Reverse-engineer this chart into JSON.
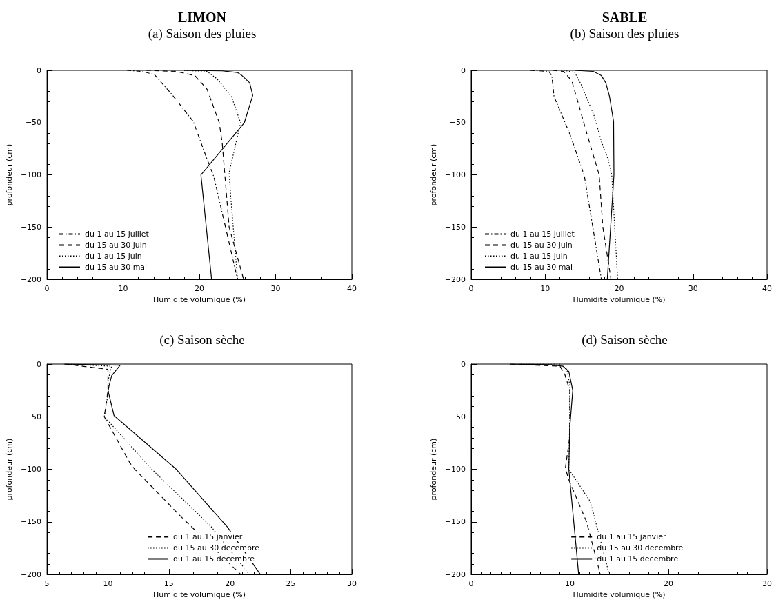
{
  "chart_data": [
    {
      "type": "line",
      "title": "LIMON",
      "subtitle": "(a) Saison des pluies",
      "xlabel": "Humidite volumique (%)",
      "ylabel": "profondeur (cm)",
      "xlim": [
        0,
        40
      ],
      "xticks": [
        0,
        10,
        20,
        30,
        40
      ],
      "ylim": [
        -200,
        0
      ],
      "yticks": [
        -200,
        -150,
        -100,
        -50,
        0
      ],
      "legend": "bottom left",
      "marker": "none",
      "grid": false,
      "series": [
        {
          "name": "du 1 au 15 juillet",
          "color": "#000000",
          "line_style": "dashdot",
          "x": [
            10.5,
            12.5,
            14.1,
            16.5,
            19.2,
            20.8,
            21.9,
            25
          ],
          "values": [
            0,
            -1,
            -4,
            -24,
            -49,
            -81,
            -102,
            -200
          ]
        },
        {
          "name": "du 15 au 30 juin",
          "color": "#000000",
          "line_style": "dashed",
          "x": [
            13,
            17,
            19.4,
            21,
            22.6,
            23,
            23.9,
            25.8
          ],
          "values": [
            0,
            -1,
            -5,
            -18,
            -50,
            -70,
            -150,
            -200
          ]
        },
        {
          "name": "du 1 au 15 juin",
          "color": "#000000",
          "line_style": "dotted",
          "x": [
            18,
            21,
            22.3,
            24.2,
            25.4,
            23.9,
            24.1,
            25
          ],
          "values": [
            0,
            -1,
            -8,
            -25,
            -50,
            -98,
            -120,
            -200
          ]
        },
        {
          "name": "du 15 au 30 mai",
          "color": "#000000",
          "line_style": "solid",
          "x": [
            18,
            23,
            25,
            25.6,
            26.6,
            27,
            25.9,
            20.2,
            21.6
          ],
          "values": [
            0,
            -0.5,
            -2,
            -5,
            -12,
            -24,
            -50,
            -100,
            -200
          ]
        }
      ]
    },
    {
      "type": "line",
      "title": "SABLE",
      "subtitle": "(b) Saison des pluies",
      "xlabel": "Humidite volumique (%)",
      "ylabel": "profondeur (cm)",
      "xlim": [
        0,
        40
      ],
      "xticks": [
        0,
        10,
        20,
        30,
        40
      ],
      "ylim": [
        -200,
        0
      ],
      "yticks": [
        -200,
        -150,
        -100,
        -50,
        0
      ],
      "legend": "bottom left",
      "marker": "none",
      "grid": false,
      "series": [
        {
          "name": "du 1 au 15 juillet",
          "color": "#000000",
          "line_style": "dashdot",
          "x": [
            8,
            10.5,
            10.9,
            11.2,
            13.4,
            15.3,
            17.6
          ],
          "values": [
            0,
            -1,
            -5,
            -25,
            -62,
            -101,
            -200
          ]
        },
        {
          "name": "du 15 au 30 juin",
          "color": "#000000",
          "line_style": "dashed",
          "x": [
            11,
            12.5,
            13.6,
            14.5,
            15.7,
            17.3,
            17.8,
            18.9
          ],
          "values": [
            0,
            -1,
            -10,
            -32,
            -62,
            -100,
            -150,
            -200
          ]
        },
        {
          "name": "du 1 au 15 juin",
          "color": "#000000",
          "line_style": "dotted",
          "x": [
            12.5,
            14,
            14.9,
            16.6,
            17.6,
            18.5,
            19,
            19.8
          ],
          "values": [
            0,
            -2,
            -14,
            -43,
            -68,
            -85,
            -100,
            -200
          ]
        },
        {
          "name": "du 15 au 30 mai",
          "color": "#000000",
          "line_style": "solid",
          "x": [
            14,
            16.5,
            17.6,
            18.2,
            18.7,
            19.25,
            19.3,
            18.4
          ],
          "values": [
            0,
            -1,
            -5,
            -12,
            -25,
            -49,
            -100,
            -200
          ]
        }
      ]
    },
    {
      "type": "line",
      "title": "(c) Saison sèche",
      "xlabel": "Humidite volumique (%)",
      "ylabel": "profondeur (cm)",
      "xlim": [
        5,
        30
      ],
      "xticks": [
        5,
        10,
        15,
        20,
        25,
        30
      ],
      "ylim": [
        -200,
        0
      ],
      "yticks": [
        -200,
        -150,
        -100,
        -50,
        0
      ],
      "legend": "bottom",
      "marker": "none",
      "grid": false,
      "series": [
        {
          "name": "du 1 au 15 janvier",
          "color": "#000000",
          "line_style": "dashed",
          "x": [
            6.5,
            10,
            10,
            9.7,
            11.8,
            12.2,
            15.9,
            20.9
          ],
          "values": [
            0,
            -5,
            -25,
            -50,
            -94,
            -100,
            -144,
            -200
          ]
        },
        {
          "name": "du 15 au 30 decembre",
          "color": "#000000",
          "line_style": "dotted",
          "x": [
            6.5,
            10.3,
            10,
            10.05,
            9.7,
            13.6,
            18.5,
            21.6
          ],
          "values": [
            0,
            -2,
            -16,
            -25,
            -50,
            -100,
            -155,
            -200
          ]
        },
        {
          "name": "du 1 au 15 decembre",
          "color": "#000000",
          "line_style": "solid",
          "x": [
            6.4,
            11,
            10.3,
            10,
            10.5,
            15.6,
            19.8,
            22.5
          ],
          "values": [
            0,
            -1,
            -11,
            -25,
            -49,
            -100,
            -155,
            -200
          ]
        }
      ]
    },
    {
      "type": "line",
      "title": "(d) Saison sèche",
      "xlabel": "Humidite volumique (%)",
      "ylabel": "profondeur (cm)",
      "xlim": [
        0,
        30
      ],
      "xticks": [
        0,
        10,
        20,
        30
      ],
      "ylim": [
        -200,
        0
      ],
      "yticks": [
        -200,
        -150,
        -100,
        -50,
        0
      ],
      "legend": "bottom",
      "marker": "none",
      "grid": false,
      "series": [
        {
          "name": "du 1 au 15 janvier",
          "color": "#000000",
          "line_style": "dashed",
          "x": [
            4,
            9,
            9.5,
            10,
            10,
            9.55,
            9.9,
            11.7,
            13.1
          ],
          "values": [
            0,
            -2,
            -10,
            -25,
            -69,
            -99,
            -110,
            -150,
            -200
          ]
        },
        {
          "name": "du 15 au 30 decembre",
          "color": "#000000",
          "line_style": "dotted",
          "x": [
            5,
            9,
            9.7,
            10,
            10,
            9.9,
            12.1,
            14
          ],
          "values": [
            0,
            0,
            -5,
            -20,
            -50,
            -100,
            -131,
            -200
          ]
        },
        {
          "name": "du 1 au 15 decembre",
          "color": "#000000",
          "line_style": "solid",
          "x": [
            3.9,
            8,
            9.3,
            9.9,
            10.3,
            10,
            9.9,
            10.9
          ],
          "values": [
            0,
            -0.5,
            -2,
            -7,
            -25,
            -60,
            -100,
            -200
          ]
        }
      ]
    }
  ]
}
